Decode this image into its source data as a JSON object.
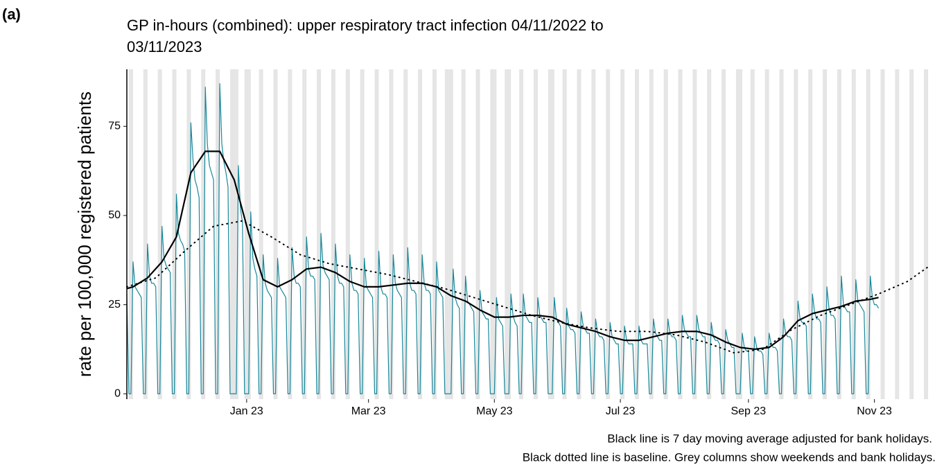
{
  "chart_data": {
    "type": "line",
    "panel_label": "(a)",
    "title": [
      "GP in-hours (combined): upper respiratory tract infection 04/11/2022 to",
      "03/11/2023"
    ],
    "ylabel": "rate per 100,000 registered patients",
    "caption": [
      "Black line is 7 day moving average adjusted for bank holidays.",
      "Black dotted line is baseline. Grey columns show weekends and bank holidays."
    ],
    "xlim": [
      "2022-11-04",
      "2023-11-29"
    ],
    "ylim": [
      -1.5,
      91
    ],
    "yticks": [
      0,
      25,
      50,
      75
    ],
    "xticks": [
      {
        "value": "2023-01-01",
        "label": "Jan 23"
      },
      {
        "value": "2023-03-01",
        "label": "Mar 23"
      },
      {
        "value": "2023-05-01",
        "label": "May 23"
      },
      {
        "value": "2023-07-01",
        "label": "Jul 23"
      },
      {
        "value": "2023-09-01",
        "label": "Sep 23"
      },
      {
        "value": "2023-11-01",
        "label": "Nov 23"
      }
    ],
    "shade_weekends": true,
    "shade_color": "#e5e5e5",
    "bank_holidays": [
      "2022-12-26",
      "2022-12-27",
      "2023-01-02",
      "2023-04-07",
      "2023-04-10",
      "2023-05-01",
      "2023-05-08",
      "2023-05-29",
      "2023-08-28"
    ],
    "x": [
      "2022-11-04",
      "2022-11-05",
      "2022-11-06",
      "2022-11-07",
      "2022-11-08",
      "2022-11-09",
      "2022-11-10",
      "2022-11-11",
      "2022-11-12",
      "2022-11-13",
      "2022-11-14",
      "2022-11-15",
      "2022-11-16",
      "2022-11-17",
      "2022-11-18",
      "2022-11-19",
      "2022-11-20",
      "2022-11-21",
      "2022-11-22",
      "2022-11-23",
      "2022-11-24",
      "2022-11-25",
      "2022-11-26",
      "2022-11-27",
      "2022-11-28",
      "2022-11-29",
      "2022-11-30",
      "2022-12-01",
      "2022-12-02",
      "2022-12-03",
      "2022-12-04",
      "2022-12-05",
      "2022-12-06",
      "2022-12-07",
      "2022-12-08",
      "2022-12-09",
      "2022-12-10",
      "2022-12-11",
      "2022-12-12",
      "2022-12-13",
      "2022-12-14",
      "2022-12-15",
      "2022-12-16",
      "2022-12-17",
      "2022-12-18",
      "2022-12-19",
      "2022-12-20",
      "2022-12-21",
      "2022-12-22",
      "2022-12-23",
      "2022-12-24",
      "2022-12-25",
      "2022-12-26",
      "2022-12-27",
      "2022-12-28",
      "2022-12-29",
      "2022-12-30",
      "2022-12-31",
      "2023-01-01",
      "2023-01-02",
      "2023-01-03",
      "2023-01-04",
      "2023-01-05",
      "2023-01-06",
      "2023-01-07",
      "2023-01-08",
      "2023-01-09",
      "2023-01-10",
      "2023-01-11",
      "2023-01-12",
      "2023-01-13",
      "2023-01-14",
      "2023-01-15",
      "2023-01-16",
      "2023-01-17",
      "2023-01-18",
      "2023-01-19",
      "2023-01-20",
      "2023-01-21",
      "2023-01-22",
      "2023-01-23",
      "2023-01-24",
      "2023-01-25",
      "2023-01-26",
      "2023-01-27",
      "2023-01-28",
      "2023-01-29",
      "2023-01-30",
      "2023-01-31",
      "2023-02-01",
      "2023-02-02",
      "2023-02-03",
      "2023-02-04",
      "2023-02-05",
      "2023-02-06",
      "2023-02-07",
      "2023-02-08",
      "2023-02-09",
      "2023-02-10",
      "2023-02-11",
      "2023-02-12",
      "2023-02-13",
      "2023-02-14",
      "2023-02-15",
      "2023-02-16",
      "2023-02-17",
      "2023-02-18",
      "2023-02-19",
      "2023-02-20",
      "2023-02-21",
      "2023-02-22",
      "2023-02-23",
      "2023-02-24",
      "2023-02-25",
      "2023-02-26",
      "2023-02-27",
      "2023-02-28",
      "2023-03-01",
      "2023-03-02",
      "2023-03-03",
      "2023-03-04",
      "2023-03-05",
      "2023-03-06",
      "2023-03-07",
      "2023-03-08",
      "2023-03-09",
      "2023-03-10",
      "2023-03-11",
      "2023-03-12",
      "2023-03-13",
      "2023-03-14",
      "2023-03-15",
      "2023-03-16",
      "2023-03-17",
      "2023-03-18",
      "2023-03-19",
      "2023-03-20",
      "2023-03-21",
      "2023-03-22",
      "2023-03-23",
      "2023-03-24",
      "2023-03-25",
      "2023-03-26",
      "2023-03-27",
      "2023-03-28",
      "2023-03-29",
      "2023-03-30",
      "2023-03-31",
      "2023-04-01",
      "2023-04-02",
      "2023-04-03",
      "2023-04-04",
      "2023-04-05",
      "2023-04-06",
      "2023-04-07",
      "2023-04-08",
      "2023-04-09",
      "2023-04-10",
      "2023-04-11",
      "2023-04-12",
      "2023-04-13",
      "2023-04-14",
      "2023-04-15",
      "2023-04-16",
      "2023-04-17",
      "2023-04-18",
      "2023-04-19",
      "2023-04-20",
      "2023-04-21",
      "2023-04-22",
      "2023-04-23",
      "2023-04-24",
      "2023-04-25",
      "2023-04-26",
      "2023-04-27",
      "2023-04-28",
      "2023-04-29",
      "2023-04-30",
      "2023-05-01",
      "2023-05-02",
      "2023-05-03",
      "2023-05-04",
      "2023-05-05",
      "2023-05-06",
      "2023-05-07",
      "2023-05-08",
      "2023-05-09",
      "2023-05-10",
      "2023-05-11",
      "2023-05-12",
      "2023-05-13",
      "2023-05-14",
      "2023-05-15",
      "2023-05-16",
      "2023-05-17",
      "2023-05-18",
      "2023-05-19",
      "2023-05-20",
      "2023-05-21",
      "2023-05-22",
      "2023-05-23",
      "2023-05-24",
      "2023-05-25",
      "2023-05-26",
      "2023-05-27",
      "2023-05-28",
      "2023-05-29",
      "2023-05-30",
      "2023-05-31",
      "2023-06-01",
      "2023-06-02",
      "2023-06-03",
      "2023-06-04",
      "2023-06-05",
      "2023-06-06",
      "2023-06-07",
      "2023-06-08",
      "2023-06-09",
      "2023-06-10",
      "2023-06-11",
      "2023-06-12",
      "2023-06-13",
      "2023-06-14",
      "2023-06-15",
      "2023-06-16",
      "2023-06-17",
      "2023-06-18",
      "2023-06-19",
      "2023-06-20",
      "2023-06-21",
      "2023-06-22",
      "2023-06-23",
      "2023-06-24",
      "2023-06-25",
      "2023-06-26",
      "2023-06-27",
      "2023-06-28",
      "2023-06-29",
      "2023-06-30",
      "2023-07-01",
      "2023-07-02",
      "2023-07-03",
      "2023-07-04",
      "2023-07-05",
      "2023-07-06",
      "2023-07-07",
      "2023-07-08",
      "2023-07-09",
      "2023-07-10",
      "2023-07-11",
      "2023-07-12",
      "2023-07-13",
      "2023-07-14",
      "2023-07-15",
      "2023-07-16",
      "2023-07-17",
      "2023-07-18",
      "2023-07-19",
      "2023-07-20",
      "2023-07-21",
      "2023-07-22",
      "2023-07-23",
      "2023-07-24",
      "2023-07-25",
      "2023-07-26",
      "2023-07-27",
      "2023-07-28",
      "2023-07-29",
      "2023-07-30",
      "2023-07-31",
      "2023-08-01",
      "2023-08-02",
      "2023-08-03",
      "2023-08-04",
      "2023-08-05",
      "2023-08-06",
      "2023-08-07",
      "2023-08-08",
      "2023-08-09",
      "2023-08-10",
      "2023-08-11",
      "2023-08-12",
      "2023-08-13",
      "2023-08-14",
      "2023-08-15",
      "2023-08-16",
      "2023-08-17",
      "2023-08-18",
      "2023-08-19",
      "2023-08-20",
      "2023-08-21",
      "2023-08-22",
      "2023-08-23",
      "2023-08-24",
      "2023-08-25",
      "2023-08-26",
      "2023-08-27",
      "2023-08-28",
      "2023-08-29",
      "2023-08-30",
      "2023-08-31",
      "2023-09-01",
      "2023-09-02",
      "2023-09-03",
      "2023-09-04",
      "2023-09-05",
      "2023-09-06",
      "2023-09-07",
      "2023-09-08",
      "2023-09-09",
      "2023-09-10",
      "2023-09-11",
      "2023-09-12",
      "2023-09-13",
      "2023-09-14",
      "2023-09-15",
      "2023-09-16",
      "2023-09-17",
      "2023-09-18",
      "2023-09-19",
      "2023-09-20",
      "2023-09-21",
      "2023-09-22",
      "2023-09-23",
      "2023-09-24",
      "2023-09-25",
      "2023-09-26",
      "2023-09-27",
      "2023-09-28",
      "2023-09-29",
      "2023-09-30",
      "2023-10-01",
      "2023-10-02",
      "2023-10-03",
      "2023-10-04",
      "2023-10-05",
      "2023-10-06",
      "2023-10-07",
      "2023-10-08",
      "2023-10-09",
      "2023-10-10",
      "2023-10-11",
      "2023-10-12",
      "2023-10-13",
      "2023-10-14",
      "2023-10-15",
      "2023-10-16",
      "2023-10-17",
      "2023-10-18",
      "2023-10-19",
      "2023-10-20",
      "2023-10-21",
      "2023-10-22",
      "2023-10-23",
      "2023-10-24",
      "2023-10-25",
      "2023-10-26",
      "2023-10-27",
      "2023-10-28",
      "2023-10-29",
      "2023-10-30",
      "2023-10-31",
      "2023-11-01",
      "2023-11-02",
      "2023-11-03"
    ],
    "series": [
      {
        "color": "#17879a",
        "width": 1.2,
        "style": "solid",
        "values": [
          28,
          0,
          0,
          37,
          30,
          29,
          28,
          27,
          0,
          0,
          42,
          33,
          31,
          31,
          30,
          0,
          0,
          47,
          38,
          36,
          35,
          34,
          0,
          0,
          56,
          45,
          43,
          42,
          40,
          0,
          0,
          76,
          66,
          60,
          58,
          55,
          0,
          0,
          86,
          70,
          64,
          62,
          60,
          0,
          0,
          87,
          70,
          65,
          62,
          58,
          0,
          0,
          0,
          0,
          64,
          52,
          48,
          0,
          0,
          0,
          51,
          38,
          35,
          33,
          0,
          0,
          39,
          31,
          29,
          28,
          27,
          0,
          0,
          38,
          30,
          29,
          28,
          27,
          0,
          0,
          41,
          33,
          31,
          31,
          30,
          0,
          0,
          44,
          35,
          33,
          33,
          32,
          0,
          0,
          45,
          36,
          34,
          33,
          32,
          0,
          0,
          42,
          33,
          31,
          31,
          30,
          0,
          0,
          39,
          31,
          29,
          29,
          28,
          0,
          0,
          38,
          30,
          29,
          28,
          27,
          0,
          0,
          40,
          30,
          28,
          28,
          27,
          0,
          0,
          39,
          31,
          29,
          28,
          27,
          0,
          0,
          41,
          31,
          29,
          29,
          28,
          0,
          0,
          39,
          31,
          29,
          29,
          28,
          0,
          0,
          37,
          29,
          28,
          27,
          0,
          0,
          0,
          0,
          35,
          27,
          25,
          24,
          0,
          0,
          33,
          26,
          25,
          24,
          23,
          0,
          0,
          29,
          23,
          22,
          21,
          21,
          0,
          0,
          0,
          27,
          21,
          20,
          19,
          0,
          0,
          0,
          28,
          22,
          20,
          19,
          0,
          0,
          28,
          22,
          21,
          20,
          20,
          0,
          0,
          27,
          22,
          21,
          20,
          20,
          0,
          0,
          0,
          27,
          21,
          20,
          19,
          0,
          0,
          24,
          19,
          18,
          18,
          17,
          0,
          0,
          23,
          19,
          18,
          17,
          17,
          0,
          0,
          21,
          17,
          16,
          16,
          15,
          0,
          0,
          20,
          16,
          15,
          14,
          14,
          0,
          0,
          19,
          15,
          14,
          14,
          14,
          0,
          0,
          19,
          15,
          14,
          14,
          14,
          0,
          0,
          21,
          17,
          16,
          15,
          15,
          0,
          0,
          21,
          17,
          16,
          16,
          15,
          0,
          0,
          22,
          18,
          17,
          16,
          16,
          0,
          0,
          22,
          18,
          17,
          16,
          16,
          0,
          0,
          20,
          16,
          15,
          15,
          14,
          0,
          0,
          18,
          15,
          14,
          13,
          13,
          0,
          0,
          0,
          17,
          13,
          12,
          12,
          0,
          0,
          16,
          13,
          12,
          12,
          11,
          0,
          0,
          17,
          14,
          13,
          13,
          12,
          0,
          0,
          21,
          17,
          16,
          16,
          15,
          0,
          0,
          26,
          21,
          20,
          20,
          19,
          0,
          0,
          28,
          23,
          21,
          21,
          20,
          0,
          0,
          30,
          24,
          22,
          22,
          21,
          0,
          0,
          33,
          25,
          24,
          23,
          23,
          0,
          0,
          32,
          26,
          25,
          24,
          23,
          0,
          0,
          33,
          27,
          25,
          25,
          24
        ]
      },
      {
        "color": "#000000",
        "width": 2.2,
        "style": "solid",
        "x": [
          "2022-11-04",
          "2022-11-07",
          "2022-11-14",
          "2022-11-21",
          "2022-11-28",
          "2022-12-05",
          "2022-12-12",
          "2022-12-19",
          "2022-12-26",
          "2023-01-02",
          "2023-01-09",
          "2023-01-16",
          "2023-01-23",
          "2023-01-30",
          "2023-02-06",
          "2023-02-13",
          "2023-02-20",
          "2023-02-27",
          "2023-03-06",
          "2023-03-13",
          "2023-03-20",
          "2023-03-27",
          "2023-04-03",
          "2023-04-10",
          "2023-04-17",
          "2023-04-24",
          "2023-05-01",
          "2023-05-08",
          "2023-05-15",
          "2023-05-22",
          "2023-05-29",
          "2023-06-05",
          "2023-06-12",
          "2023-06-19",
          "2023-06-26",
          "2023-07-03",
          "2023-07-10",
          "2023-07-17",
          "2023-07-24",
          "2023-07-31",
          "2023-08-07",
          "2023-08-14",
          "2023-08-21",
          "2023-08-28",
          "2023-09-04",
          "2023-09-11",
          "2023-09-18",
          "2023-09-25",
          "2023-10-02",
          "2023-10-09",
          "2023-10-16",
          "2023-10-23",
          "2023-10-30",
          "2023-11-03"
        ],
        "values": [
          29.5,
          30,
          32.5,
          37,
          44,
          62,
          68,
          68,
          60,
          45,
          32,
          30,
          32,
          35,
          35.5,
          34,
          31.5,
          30,
          30,
          30.5,
          31,
          31,
          30,
          27.5,
          26,
          23.5,
          21.5,
          21.5,
          22,
          22,
          21.5,
          19.5,
          18.5,
          17.5,
          16,
          15,
          15,
          16,
          17,
          17.5,
          17.5,
          16.5,
          14.5,
          13,
          12.5,
          13,
          16,
          20.5,
          22.5,
          23.5,
          24.5,
          26,
          26.5,
          27
        ]
      },
      {
        "color": "#000000",
        "width": 2,
        "style": "dotted",
        "x": [
          "2022-11-04",
          "2022-11-18",
          "2022-12-02",
          "2022-12-16",
          "2022-12-30",
          "2023-01-13",
          "2023-01-27",
          "2023-02-10",
          "2023-02-24",
          "2023-03-10",
          "2023-03-24",
          "2023-04-07",
          "2023-04-21",
          "2023-05-05",
          "2023-05-19",
          "2023-06-02",
          "2023-06-16",
          "2023-06-30",
          "2023-07-14",
          "2023-07-28",
          "2023-08-11",
          "2023-08-25",
          "2023-09-08",
          "2023-09-22",
          "2023-10-06",
          "2023-10-20",
          "2023-11-03",
          "2023-11-17",
          "2023-11-28"
        ],
        "values": [
          30,
          32.5,
          40,
          47,
          48.5,
          44,
          39,
          36.5,
          35,
          33.5,
          31.5,
          29.5,
          27,
          24.5,
          22,
          20,
          18.5,
          17.5,
          17.5,
          16.5,
          14.5,
          11.5,
          12.5,
          18,
          22,
          25,
          28,
          31.5,
          36
        ]
      }
    ]
  }
}
